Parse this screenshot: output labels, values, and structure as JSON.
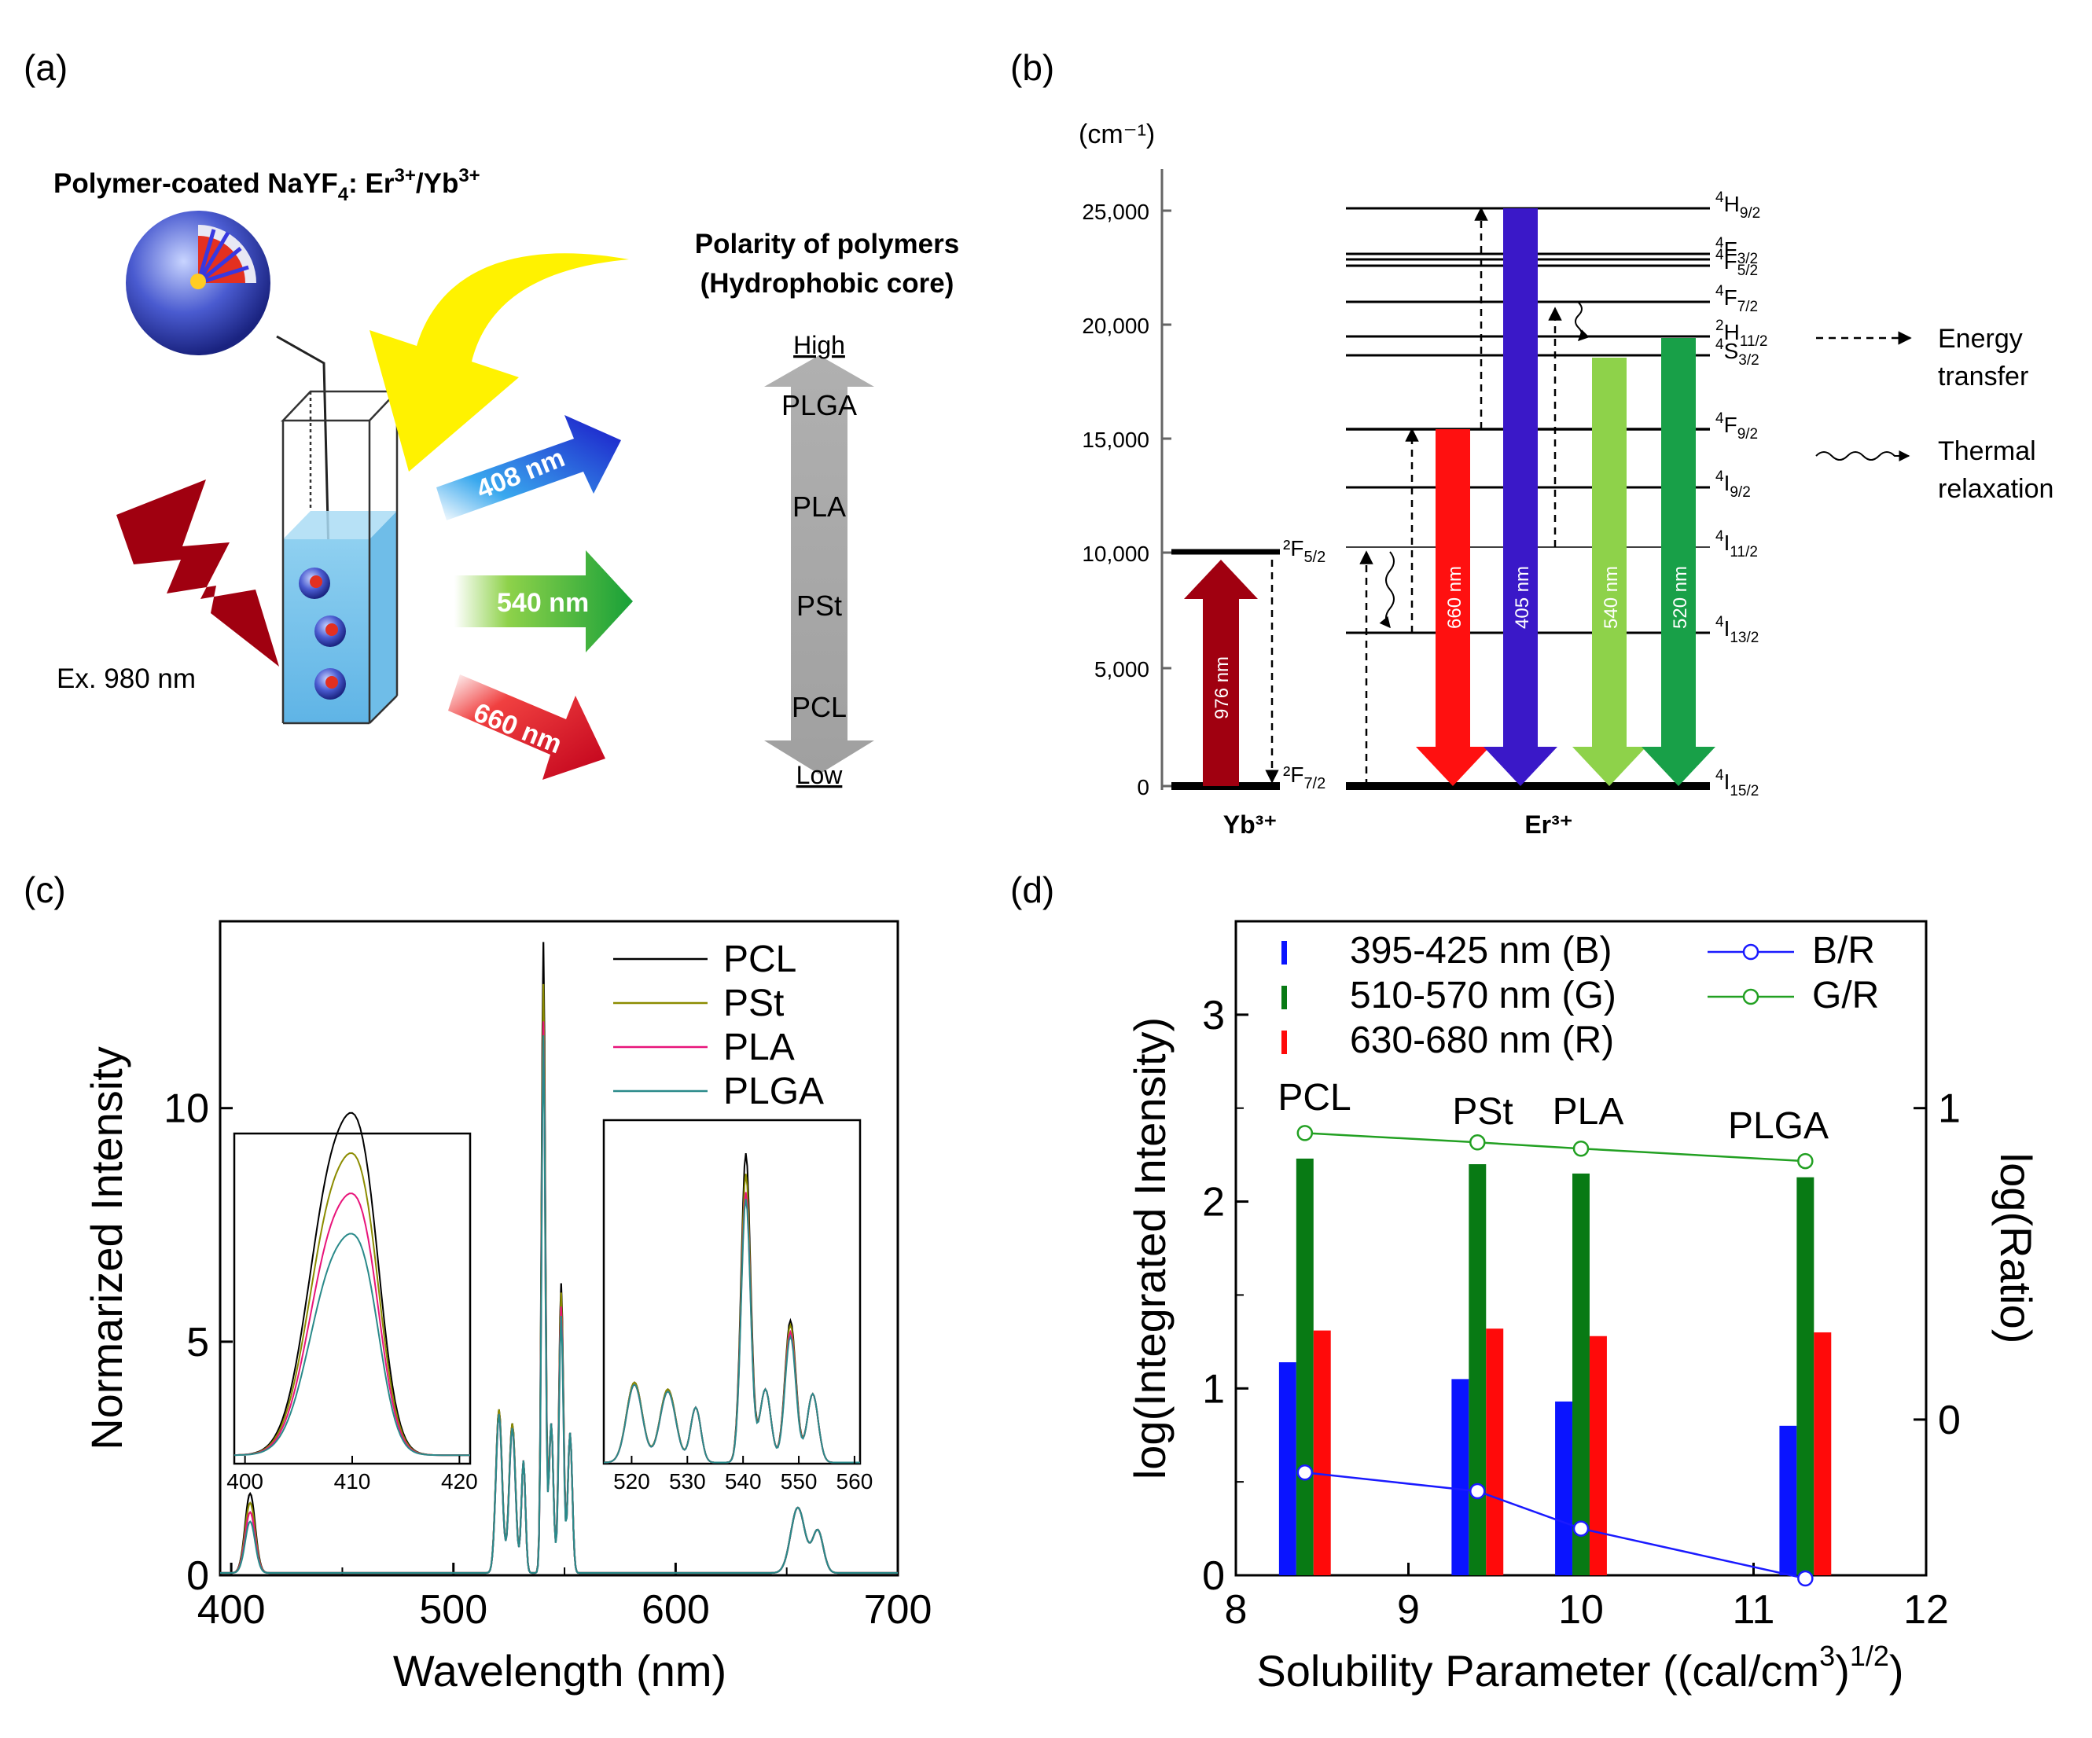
{
  "panels": {
    "a": {
      "label": "(a)",
      "title_main": "Polymer-coated NaYF",
      "title_sub": "4",
      "title_rest": ": Er",
      "title_sup1": "3+",
      "title_slash": "/Yb",
      "title_sup2": "3+",
      "polarity_line1": "Polarity of polymers",
      "polarity_line2": "(Hydrophobic core)",
      "polarity_high": "High",
      "polarity_low": "Low",
      "polymers": [
        "PLGA",
        "PLA",
        "PSt",
        "PCL"
      ],
      "emissions": [
        "408 nm",
        "540 nm",
        "660 nm"
      ],
      "excitation": "Ex. 980 nm",
      "colors": {
        "blue": "#1a1acc",
        "green": "#1fa03a",
        "red": "#c00018",
        "yellow": "#fff200",
        "lightning": "#a00010"
      }
    },
    "b": {
      "label": "(b)",
      "unit": "(cm⁻¹)",
      "yticks": [
        "25,000",
        "20,000",
        "15,000",
        "10,000",
        "5,000",
        "0"
      ],
      "yb_label": "Yb³⁺",
      "er_label": "Er³⁺",
      "yb_levels": [
        {
          "main": "2F",
          "sub": "5/2",
          "sup": ""
        },
        {
          "main": "2F",
          "sub": "7/2",
          "sup": ""
        }
      ],
      "er_levels": [
        {
          "sup": "4",
          "main": "H",
          "sub": "9/2"
        },
        {
          "sup": "4",
          "main": "F",
          "sub": "3/2"
        },
        {
          "sup": "4",
          "main": "F",
          "sub": "5/2"
        },
        {
          "sup": "4",
          "main": "F",
          "sub": "7/2"
        },
        {
          "sup": "2",
          "main": "H",
          "sub": "11/2"
        },
        {
          "sup": "4",
          "main": "S",
          "sub": "3/2"
        },
        {
          "sup": "4",
          "main": "F",
          "sub": "9/2"
        },
        {
          "sup": "4",
          "main": "I",
          "sub": "9/2"
        },
        {
          "sup": "4",
          "main": "I",
          "sub": "11/2"
        },
        {
          "sup": "4",
          "main": "I",
          "sub": "13/2"
        },
        {
          "sup": "4",
          "main": "I",
          "sub": "15/2"
        }
      ],
      "arrows": [
        "976 nm",
        "660 nm",
        "405 nm",
        "540 nm",
        "520 nm"
      ],
      "legend": {
        "energy1": "Energy",
        "energy2": "transfer",
        "thermal1": "Thermal",
        "thermal2": "relaxation"
      }
    },
    "c": {
      "label": "(c)",
      "xlabel": "Wavelength (nm)",
      "ylabel": "Normarized Intensity",
      "xticks": [
        "400",
        "500",
        "600",
        "700"
      ],
      "yticks": [
        "0",
        "5",
        "10"
      ],
      "legend": [
        "PCL",
        "PSt",
        "PLA",
        "PLGA"
      ],
      "series_colors": [
        "#000000",
        "#8c8c00",
        "#e8147a",
        "#2a8a8a"
      ],
      "inset1_xticks": [
        "400",
        "410",
        "420"
      ],
      "inset2_xticks": [
        "520",
        "530",
        "540",
        "550",
        "560"
      ]
    },
    "d": {
      "label": "(d)",
      "polymer_labels": [
        "PCL",
        "PSt",
        "PLA",
        "PLGA"
      ]
    }
  },
  "chart_data": [
    {
      "type": "line",
      "panel": "c",
      "title": "",
      "xlabel": "Wavelength (nm)",
      "ylabel": "Normarized Intensity",
      "xlim": [
        395,
        700
      ],
      "ylim": [
        0,
        14
      ],
      "series": [
        {
          "name": "PCL",
          "peaks": [
            {
              "x": 408,
              "y": 1.7
            },
            {
              "x": 520,
              "y": 3.5
            },
            {
              "x": 526,
              "y": 3.2
            },
            {
              "x": 540,
              "y": 13.5
            },
            {
              "x": 548,
              "y": 6.2
            },
            {
              "x": 655,
              "y": 1.4
            }
          ]
        },
        {
          "name": "PSt",
          "peaks": [
            {
              "x": 408,
              "y": 1.5
            },
            {
              "x": 520,
              "y": 3.5
            },
            {
              "x": 526,
              "y": 3.2
            },
            {
              "x": 540,
              "y": 12.6
            },
            {
              "x": 548,
              "y": 6.0
            },
            {
              "x": 655,
              "y": 1.4
            }
          ]
        },
        {
          "name": "PLA",
          "peaks": [
            {
              "x": 408,
              "y": 1.3
            },
            {
              "x": 520,
              "y": 3.4
            },
            {
              "x": 526,
              "y": 3.1
            },
            {
              "x": 540,
              "y": 11.8
            },
            {
              "x": 548,
              "y": 5.7
            },
            {
              "x": 655,
              "y": 1.4
            }
          ]
        },
        {
          "name": "PLGA",
          "peaks": [
            {
              "x": 408,
              "y": 1.1
            },
            {
              "x": 520,
              "y": 3.4
            },
            {
              "x": 526,
              "y": 3.1
            },
            {
              "x": 540,
              "y": 11.5
            },
            {
              "x": 548,
              "y": 5.5
            },
            {
              "x": 655,
              "y": 1.4
            }
          ]
        }
      ]
    },
    {
      "type": "bar",
      "panel": "d",
      "xlabel": "Solubility Parameter ((cal/cm³)¹ᐟ²)",
      "xlabel_main": "Solubility Parameter ((cal/cm",
      "xlabel_sup": "3",
      "xlabel_close": ")",
      "xlabel_sup2": "1/2",
      "ylabel": "log(Integrated Intensity)",
      "ylabel_right": "log(Ratio)",
      "xlim": [
        8,
        12
      ],
      "ylim": [
        0,
        3.5
      ],
      "xticks": [
        "8",
        "9",
        "10",
        "11",
        "12"
      ],
      "yticks": [
        "0",
        "1",
        "2",
        "3"
      ],
      "yticks_right": [
        "0",
        "1"
      ],
      "x": [
        8.4,
        9.4,
        10.0,
        11.3
      ],
      "series": [
        {
          "name": "395-425 nm (B)",
          "color": "#0a14ff",
          "values": [
            1.14,
            1.05,
            0.93,
            0.8
          ]
        },
        {
          "name": "510-570 nm (G)",
          "color": "#087a14",
          "values": [
            2.23,
            2.2,
            2.15,
            2.13
          ]
        },
        {
          "name": "630-680 nm (R)",
          "color": "#ff0a0a",
          "values": [
            1.31,
            1.32,
            1.28,
            1.3
          ]
        }
      ],
      "ratio_series": [
        {
          "name": "B/R",
          "color": "#1a1aff",
          "values": [
            -0.17,
            -0.23,
            -0.35,
            -0.51
          ]
        },
        {
          "name": "G/R",
          "color": "#22a022",
          "values": [
            0.92,
            0.89,
            0.87,
            0.83
          ]
        }
      ],
      "ratio_ylim": [
        -0.5,
        1.6
      ]
    }
  ]
}
